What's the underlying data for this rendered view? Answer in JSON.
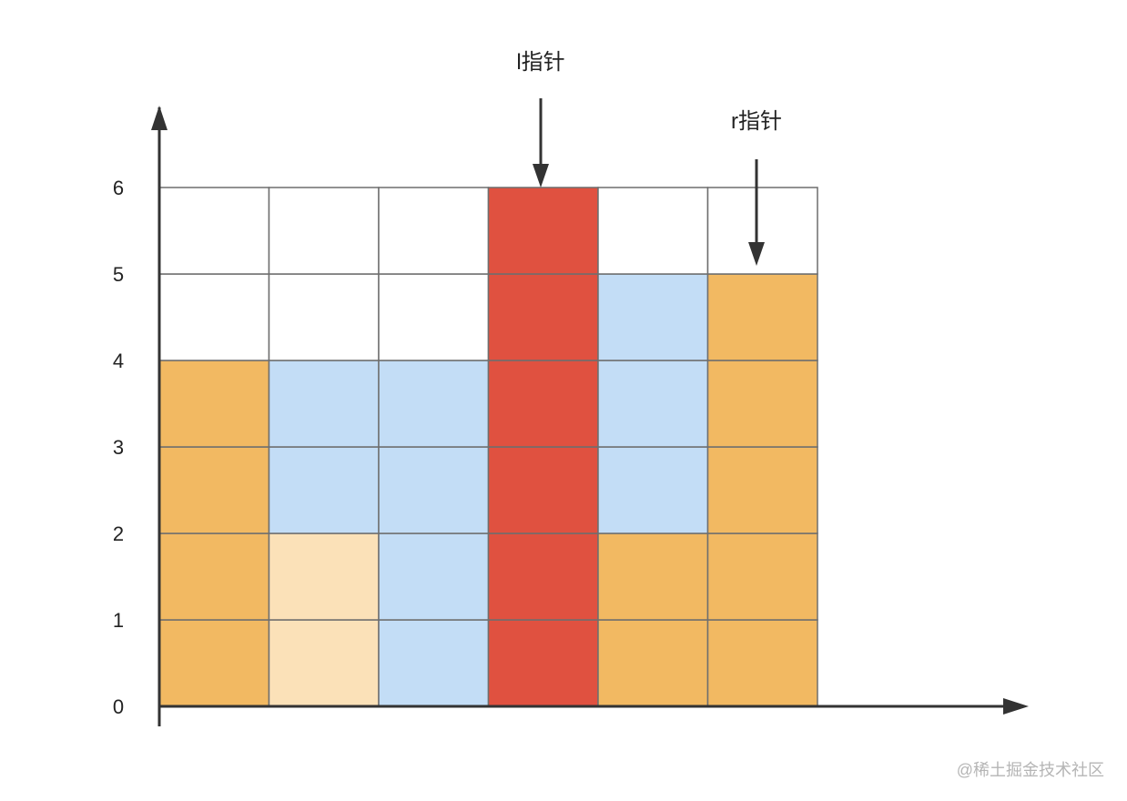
{
  "grid": {
    "rows": 6,
    "cols": 6,
    "y_ticks": [
      "0",
      "1",
      "2",
      "3",
      "4",
      "5",
      "6"
    ],
    "columns": [
      {
        "bar_height": 4,
        "fill_height": 0
      },
      {
        "bar_height": 2,
        "fill_height": 4
      },
      {
        "bar_height": 0,
        "fill_height": 4
      },
      {
        "bar_height": 6,
        "fill_height": 0
      },
      {
        "bar_height": 2,
        "fill_height": 5
      },
      {
        "bar_height": 5,
        "fill_height": 0
      }
    ],
    "highlight_column": 3,
    "light_bar_column": 1
  },
  "colors": {
    "bar": "#f2b962",
    "bar_light": "#fbe1b8",
    "water": "#c3ddf6",
    "highlight": "#e05140",
    "empty": "#ffffff",
    "grid_line": "#6e6e6e",
    "axis": "#333333"
  },
  "pointers": [
    {
      "label": "l指针",
      "column": 3,
      "points_to_height": 6
    },
    {
      "label": "r指针",
      "column": 5,
      "points_to_height": 5
    }
  ],
  "watermark": "@稀土掘金技术社区"
}
